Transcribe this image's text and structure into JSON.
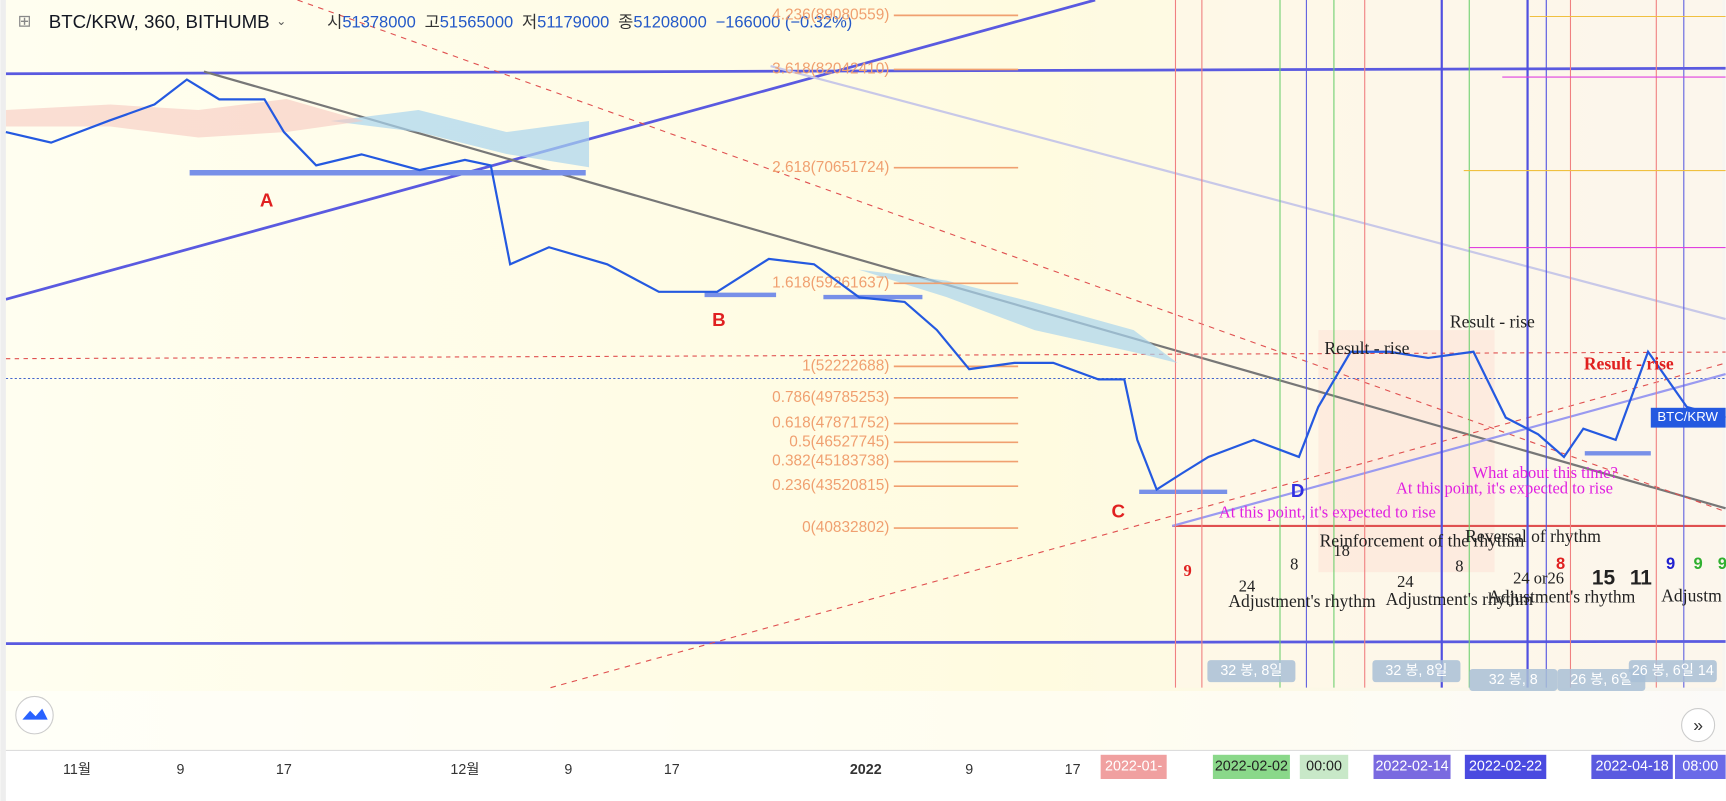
{
  "chart_data": {
    "type": "line",
    "title": "BTC/KRW, 360, BITHUMB",
    "ohlc": [
      {
        "label": "시",
        "value": 51378000
      },
      {
        "label": "고",
        "value": 51565000
      },
      {
        "label": "저",
        "value": 51179000
      },
      {
        "label": "종",
        "value": 51208000
      }
    ],
    "change": "−166000 (−0.32%)",
    "log_scale": true,
    "xlim": [
      -5.5,
      127.5
    ],
    "xticks": [
      {
        "value": 0,
        "label": "11월"
      },
      {
        "value": 8,
        "label": "9"
      },
      {
        "value": 16,
        "label": "17"
      },
      {
        "value": 30,
        "label": "12월"
      },
      {
        "value": 38,
        "label": "9"
      },
      {
        "value": 46,
        "label": "17"
      },
      {
        "value": 61,
        "label": "2022"
      },
      {
        "value": 69,
        "label": "9"
      },
      {
        "value": 77,
        "label": "17"
      }
    ],
    "ylim": [
      32030000,
      91190000
    ],
    "x": [
      -5.5,
      -2,
      2.5,
      6,
      8.5,
      11,
      14.5,
      16,
      18.5,
      22,
      26.5,
      30,
      32,
      33.5,
      36.5,
      41,
      45,
      49.5,
      53.5,
      57,
      60.5,
      64,
      66.5,
      69,
      72.5,
      75.5,
      79,
      81,
      82,
      83.5,
      85.5,
      87.5,
      91,
      94.5,
      96,
      98.5,
      101.5,
      104.5,
      108,
      110.5,
      113,
      115,
      116.5,
      119,
      121.5,
      124.5,
      127.5
    ],
    "series": [
      {
        "name": "BTC/KRW",
        "color": "#2459e0",
        "values": [
          74600000,
          73400000,
          75900000,
          77800000,
          80800000,
          78400000,
          78400000,
          74600000,
          70900000,
          72100000,
          70400000,
          71500000,
          70900000,
          61000000,
          62600000,
          61000000,
          58500000,
          58500000,
          61500000,
          61000000,
          58000000,
          57600000,
          55200000,
          52000000,
          52500000,
          52500000,
          51200000,
          51200000,
          46700000,
          43300000,
          44400000,
          45500000,
          46700000,
          45500000,
          49100000,
          53400000,
          53400000,
          52900000,
          53400000,
          48300000,
          47100000,
          45500000,
          47500000,
          46700000,
          53400000,
          49100000,
          48300000
        ]
      }
    ],
    "fib_levels": [
      {
        "value": 89080559,
        "label": "4.236(89080559)"
      },
      {
        "value": 82042410,
        "label": "3.618(82042410)"
      },
      {
        "value": 70651724,
        "label": "2.618(70651724)"
      },
      {
        "value": 59261637,
        "label": "1.618(59261637)"
      },
      {
        "value": 52222688,
        "label": "1(52222688)"
      },
      {
        "value": 49785253,
        "label": "0.786(49785253)"
      },
      {
        "value": 47871752,
        "label": "0.618(47871752)"
      },
      {
        "value": 46527745,
        "label": "0.5(46527745)"
      },
      {
        "value": 45183738,
        "label": "0.382(45183738)"
      },
      {
        "value": 43520815,
        "label": "0.236(43520815)"
      },
      {
        "value": 40832802,
        "label": "0(40832802)"
      }
    ],
    "annotations": [
      "A",
      "B",
      "C",
      "D",
      "Result - rise",
      "Result - rise",
      "Result - rise",
      "At this point, it's expected to rise",
      "At this point, it's expected to rise",
      "What about this time?",
      "Reinforcement of the rhythm",
      "Reversal of rhythm",
      "Adjustment's rhythm",
      "Adjustment's rhythm",
      "Adjustment's rhythm",
      "Adjustm",
      "9",
      "24",
      "8",
      "18",
      "24",
      "8",
      "24 or26",
      "8",
      "15",
      "11",
      "9",
      "9",
      "9"
    ],
    "badges": [
      "32 봉, 8일",
      "32 봉, 8일",
      "32 봉, 8",
      "26 봉, 6일",
      "26 봉, 6일 14"
    ],
    "time_badges": [
      "2022-01-",
      "2022-02-02",
      "00:00",
      "2022-02-14",
      "2022-02-22",
      "2022-04-18",
      "08:00"
    ]
  }
}
